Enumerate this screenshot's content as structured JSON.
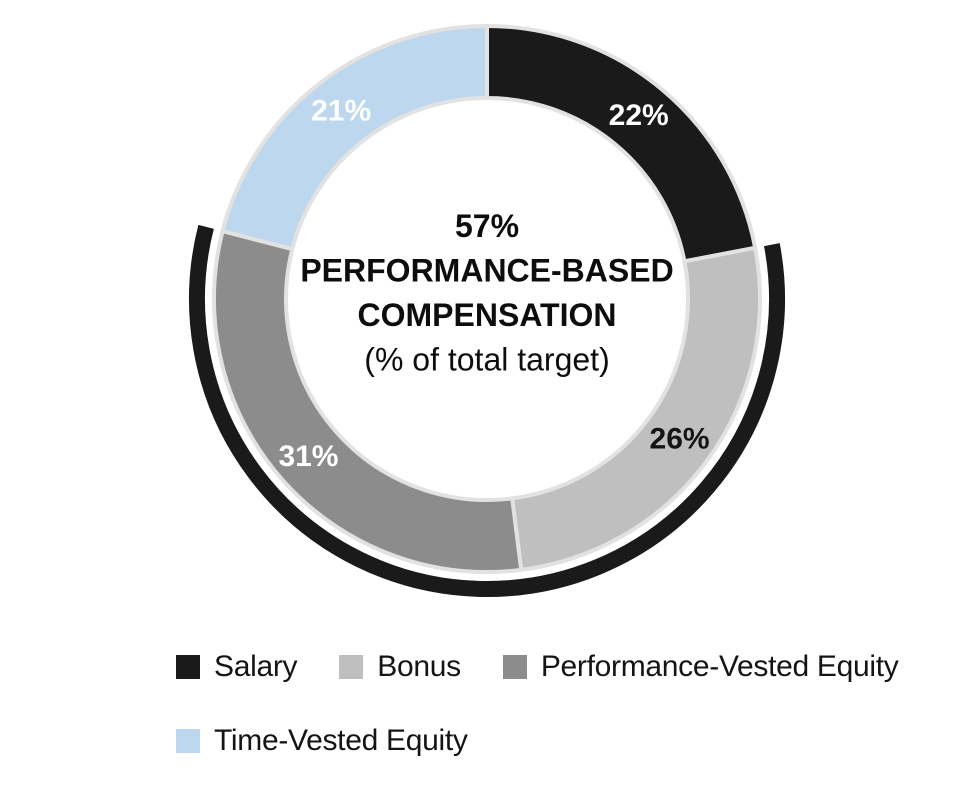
{
  "chart_data": {
    "type": "donut",
    "categories": [
      "Salary",
      "Bonus",
      "Performance-Vested Equity",
      "Time-Vested Equity"
    ],
    "values": [
      22,
      26,
      31,
      21
    ],
    "colors": [
      "#1a1a1a",
      "#bfbfbf",
      "#8c8c8c",
      "#bdd7ee"
    ],
    "slice_labels": [
      "22%",
      "26%",
      "31%",
      "21%"
    ],
    "slice_label_colors": [
      "#ffffff",
      "#141414",
      "#ffffff",
      "#ffffff"
    ],
    "start_angle_deg": 0,
    "direction": "clockwise",
    "slice_border_color": "#e2e2e2",
    "center_text": {
      "lines": [
        "57%",
        "PERFORMANCE-BASED",
        "COMPENSATION",
        "(% of total target)"
      ],
      "bold": [
        true,
        true,
        true,
        false
      ]
    },
    "highlight_arc": {
      "covers": [
        "Bonus",
        "Performance-Vested Equity"
      ],
      "value_pct": 57,
      "color": "#1a1a1a"
    },
    "legend": {
      "position": "bottom",
      "entries": [
        "Salary",
        "Bonus",
        "Performance-Vested Equity",
        "Time-Vested Equity"
      ]
    }
  }
}
